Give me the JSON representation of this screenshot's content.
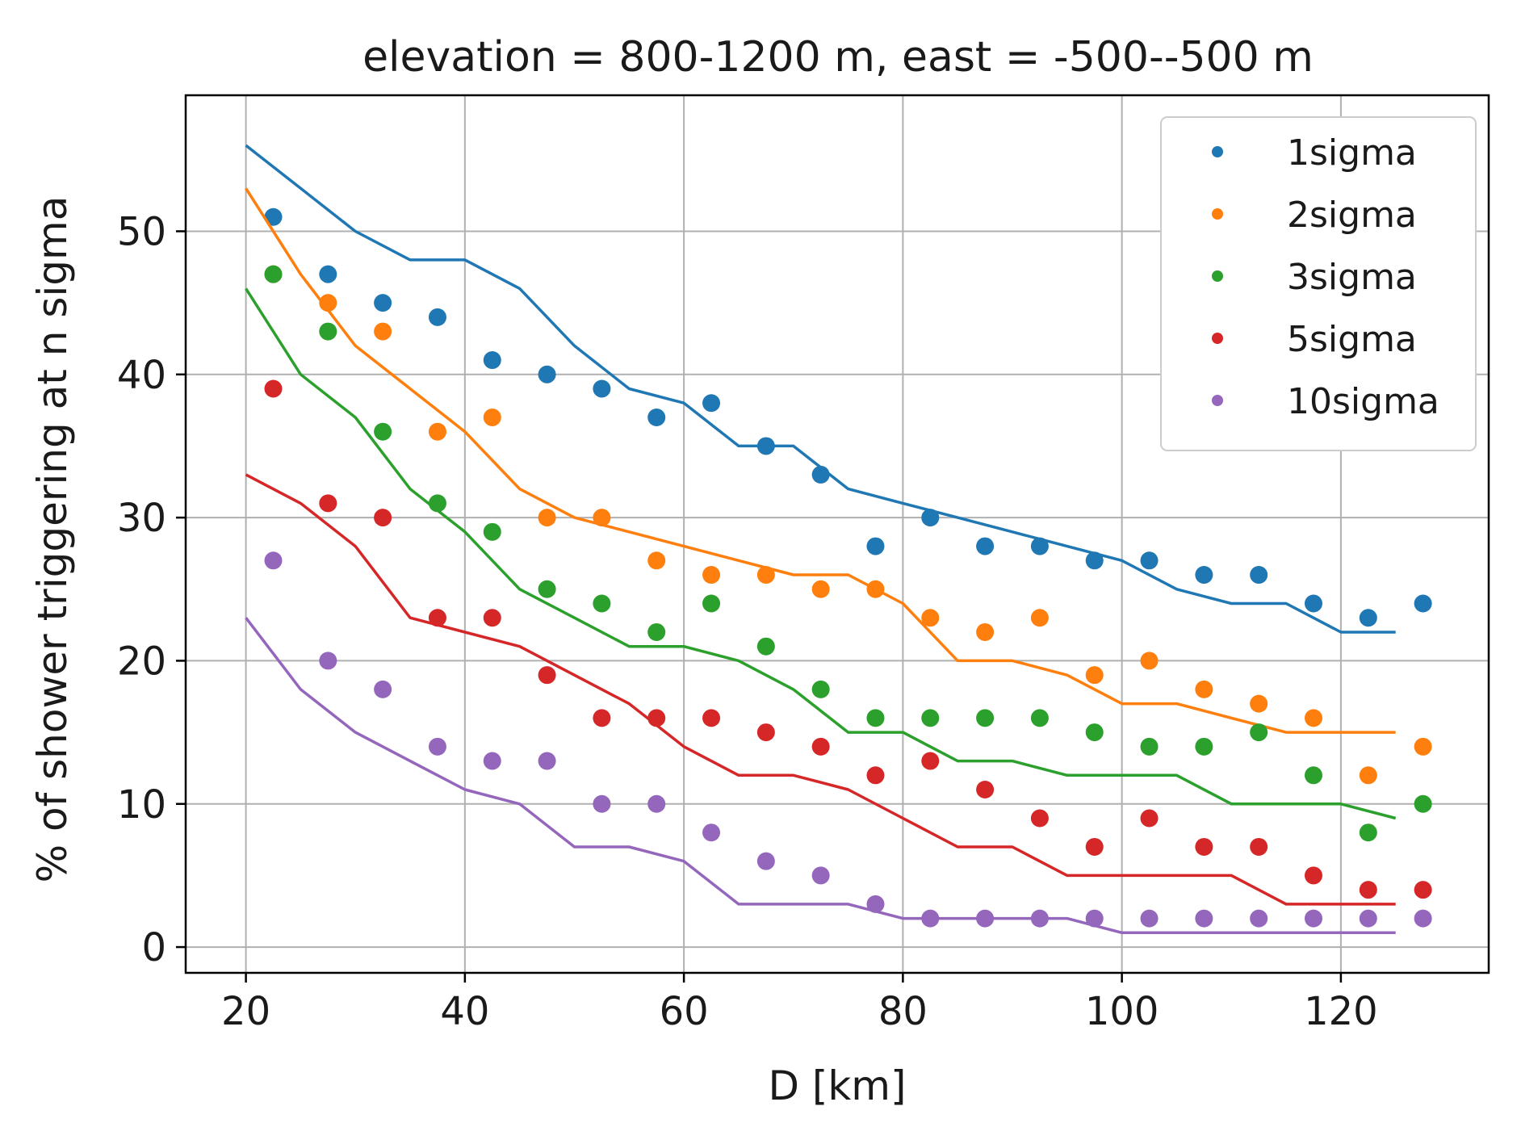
{
  "chart_data": {
    "type": "scatter",
    "title": "elevation = 800-1200 m, east = -500--500 m",
    "xlabel": "D [km]",
    "ylabel": "% of shower triggering at n sigma",
    "xlim": [
      14.5,
      133.5
    ],
    "ylim": [
      -1.8,
      59.5
    ],
    "xticks": [
      20,
      40,
      60,
      80,
      100,
      120
    ],
    "yticks": [
      0,
      10,
      20,
      30,
      40,
      50
    ],
    "grid": true,
    "legend_position": "top-right",
    "x_points": [
      22.5,
      27.5,
      32.5,
      37.5,
      42.5,
      47.5,
      52.5,
      57.5,
      62.5,
      67.5,
      72.5,
      77.5,
      82.5,
      87.5,
      92.5,
      97.5,
      102.5,
      107.5,
      112.5,
      117.5,
      122.5,
      127.5
    ],
    "x_line": [
      20,
      25,
      30,
      35,
      40,
      45,
      50,
      55,
      60,
      65,
      70,
      75,
      80,
      85,
      90,
      95,
      100,
      105,
      110,
      115,
      120,
      125
    ],
    "series": [
      {
        "name": "1sigma",
        "color": "#1f77b4",
        "points": [
          51,
          47,
          45,
          44,
          41,
          40,
          39,
          37,
          38,
          35,
          33,
          28,
          30,
          28,
          28,
          27,
          27,
          26,
          26,
          24,
          23,
          24
        ],
        "line": [
          56,
          53,
          50,
          48,
          48,
          46,
          42,
          39,
          38,
          35,
          35,
          32,
          31,
          30,
          29,
          28,
          27,
          25,
          24,
          24,
          22,
          22
        ]
      },
      {
        "name": "2sigma",
        "color": "#ff7f0e",
        "points": [
          47,
          45,
          43,
          36,
          37,
          30,
          30,
          27,
          26,
          26,
          25,
          25,
          23,
          22,
          23,
          19,
          20,
          18,
          17,
          16,
          12,
          14
        ],
        "line": [
          53,
          47,
          42,
          39,
          36,
          32,
          30,
          29,
          28,
          27,
          26,
          26,
          24,
          20,
          20,
          19,
          17,
          17,
          16,
          15,
          15,
          15
        ]
      },
      {
        "name": "3sigma",
        "color": "#2ca02c",
        "points": [
          47,
          43,
          36,
          31,
          29,
          25,
          24,
          22,
          24,
          21,
          18,
          16,
          16,
          16,
          16,
          15,
          14,
          14,
          15,
          12,
          8,
          10
        ],
        "line": [
          46,
          40,
          37,
          32,
          29,
          25,
          23,
          21,
          21,
          20,
          18,
          15,
          15,
          13,
          13,
          12,
          12,
          12,
          10,
          10,
          10,
          9
        ]
      },
      {
        "name": "5sigma",
        "color": "#d62728",
        "points": [
          39,
          31,
          30,
          23,
          23,
          19,
          16,
          16,
          16,
          15,
          14,
          12,
          13,
          11,
          9,
          7,
          9,
          7,
          7,
          5,
          4,
          4
        ],
        "line": [
          33,
          31,
          28,
          23,
          22,
          21,
          19,
          17,
          14,
          12,
          12,
          11,
          9,
          7,
          7,
          5,
          5,
          5,
          5,
          3,
          3,
          3
        ]
      },
      {
        "name": "10sigma",
        "color": "#9467bd",
        "points": [
          27,
          20,
          18,
          14,
          13,
          13,
          10,
          10,
          8,
          6,
          5,
          3,
          2,
          2,
          2,
          2,
          2,
          2,
          2,
          2,
          2,
          2
        ],
        "line": [
          23,
          18,
          15,
          13,
          11,
          10,
          7,
          7,
          6,
          3,
          3,
          3,
          2,
          2,
          2,
          2,
          1,
          1,
          1,
          1,
          1,
          1
        ]
      }
    ]
  }
}
